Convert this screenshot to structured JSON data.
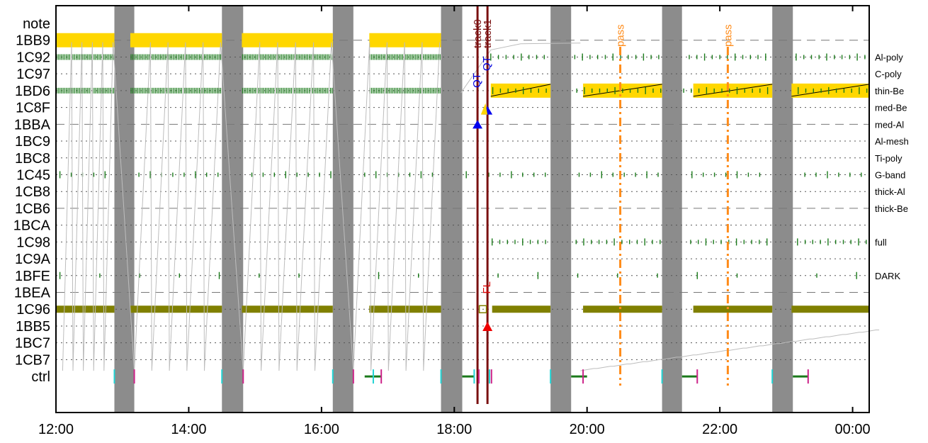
{
  "chart_data": {
    "type": "timeline",
    "x_axis": {
      "ticks": [
        "12:00",
        "14:00",
        "16:00",
        "18:00",
        "20:00",
        "22:00",
        "00:00"
      ],
      "range_hours": [
        12.0,
        24.25
      ]
    },
    "rows": [
      "note",
      "1BB9",
      "1C92",
      "1C97",
      "1BD6",
      "1C8F",
      "1BBA",
      "1BC9",
      "1BC8",
      "1C45",
      "1CB8",
      "1CB6",
      "1BCA",
      "1C98",
      "1C9A",
      "1BFE",
      "1BEA",
      "1C96",
      "1BB5",
      "1BC7",
      "1CB7",
      "ctrl"
    ],
    "row_filters": {
      "1C92": "Al-poly",
      "1C97": "C-poly",
      "1BD6": "thin-Be",
      "1C8F": "med-Be",
      "1BBA": "med-Al",
      "1BC9": "Al-mesh",
      "1BC8": "Ti-poly",
      "1C45": "G-band",
      "1CB8": "thick-Al",
      "1CB6": "thick-Be",
      "1C98": "full",
      "1BFE": "DARK"
    },
    "dashed_rows": [
      "1BB9",
      "1BBA",
      "1CB6",
      "1BEA"
    ],
    "gray_gaps": [
      [
        12.88,
        13.18
      ],
      [
        14.5,
        14.82
      ],
      [
        16.17,
        16.48
      ],
      [
        17.8,
        18.12
      ],
      [
        19.45,
        19.76
      ],
      [
        21.13,
        21.43
      ],
      [
        22.79,
        23.1
      ]
    ],
    "yellow_bars": [
      {
        "row": "1BB9",
        "start": 12.0,
        "end": 12.88
      },
      {
        "row": "1BB9",
        "start": 13.12,
        "end": 14.5
      },
      {
        "row": "1BB9",
        "start": 14.8,
        "end": 16.17
      },
      {
        "row": "1BB9",
        "start": 16.72,
        "end": 17.8
      },
      {
        "row": "1BD6",
        "start": 18.55,
        "end": 19.45
      },
      {
        "row": "1BD6",
        "start": 19.94,
        "end": 21.13
      },
      {
        "row": "1BD6",
        "start": 21.6,
        "end": 22.79
      },
      {
        "row": "1BD6",
        "start": 23.08,
        "end": 24.25
      }
    ],
    "green_tick_segments": [
      {
        "row": "1C92",
        "start": 12.0,
        "end": 12.88
      },
      {
        "row": "1C92",
        "start": 13.12,
        "end": 14.5
      },
      {
        "row": "1C92",
        "start": 14.8,
        "end": 16.17
      },
      {
        "row": "1C92",
        "start": 16.72,
        "end": 17.8
      },
      {
        "row": "1BD6",
        "start": 12.0,
        "end": 12.88
      },
      {
        "row": "1BD6",
        "start": 13.12,
        "end": 14.5
      },
      {
        "row": "1BD6",
        "start": 14.8,
        "end": 16.17
      },
      {
        "row": "1BD6",
        "start": 16.72,
        "end": 17.8
      }
    ],
    "olive_bars": [
      {
        "row": "1C96",
        "start": 12.0,
        "end": 12.88
      },
      {
        "row": "1C96",
        "start": 13.12,
        "end": 14.5
      },
      {
        "row": "1C96",
        "start": 14.8,
        "end": 16.17
      },
      {
        "row": "1C96",
        "start": 16.72,
        "end": 17.8
      },
      {
        "row": "1C96",
        "start": 18.57,
        "end": 19.45
      },
      {
        "row": "1C96",
        "start": 19.94,
        "end": 21.13
      },
      {
        "row": "1C96",
        "start": 21.6,
        "end": 22.79
      },
      {
        "row": "1C96",
        "start": 23.08,
        "end": 24.25
      }
    ],
    "track_lines": [
      {
        "label": "track0",
        "time": 18.35
      },
      {
        "label": "track1",
        "time": 18.5
      }
    ],
    "pass_lines": [
      {
        "label": "pass",
        "time": 20.5
      },
      {
        "label": "pass",
        "time": 22.12
      }
    ],
    "markers": [
      {
        "label": "QT",
        "row": "1BD6",
        "time": 18.35,
        "color": "#0000dd"
      },
      {
        "label": "QT",
        "row": "1C97",
        "time": 18.5,
        "color": "#0000dd"
      },
      {
        "label": "FL",
        "row": "1BEA",
        "time": 18.5,
        "color": "#dd0000"
      }
    ],
    "ctrl_green_segments": [
      [
        16.65,
        16.9
      ],
      [
        18.12,
        18.3
      ],
      [
        19.76,
        20.0
      ],
      [
        21.43,
        21.66
      ],
      [
        23.1,
        23.33
      ]
    ],
    "ctrl_cyan_ticks": [
      12.88,
      14.5,
      16.17,
      16.78,
      17.8,
      18.3,
      18.53,
      19.45,
      21.13,
      22.79
    ],
    "ctrl_magenta_ticks": [
      13.18,
      14.82,
      16.48,
      16.9,
      18.37,
      18.56,
      19.94,
      21.66,
      23.33
    ]
  }
}
